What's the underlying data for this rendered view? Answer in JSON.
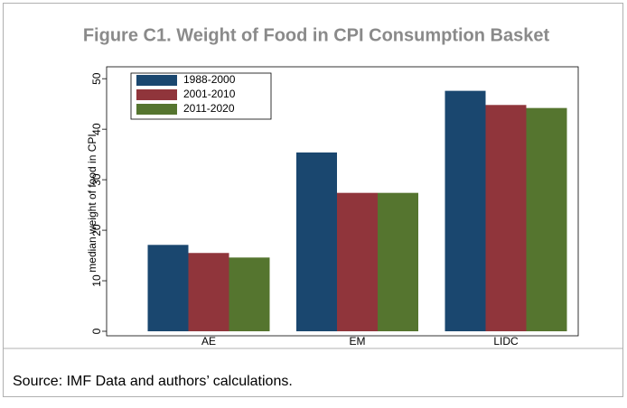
{
  "chart_data": {
    "type": "bar",
    "title": "Figure C1. Weight of Food in CPI Consumption Basket",
    "y_label": "median weight of food in CPI",
    "source": "Source: IMF Data and authors’ calculations.",
    "categories": [
      "AE",
      "EM",
      "LIDC"
    ],
    "series": [
      {
        "name": "1988-2000",
        "color": "#1a476f",
        "values": [
          17.1,
          35.4,
          47.6
        ]
      },
      {
        "name": "2001-2010",
        "color": "#90353b",
        "values": [
          15.5,
          27.4,
          44.8
        ]
      },
      {
        "name": "2011-2020",
        "color": "#55752f",
        "values": [
          14.6,
          27.4,
          44.2
        ]
      }
    ],
    "ylim": [
      0,
      52
    ],
    "yticks": [
      0,
      10,
      20,
      30,
      40,
      50
    ],
    "legend": "upper-left"
  }
}
